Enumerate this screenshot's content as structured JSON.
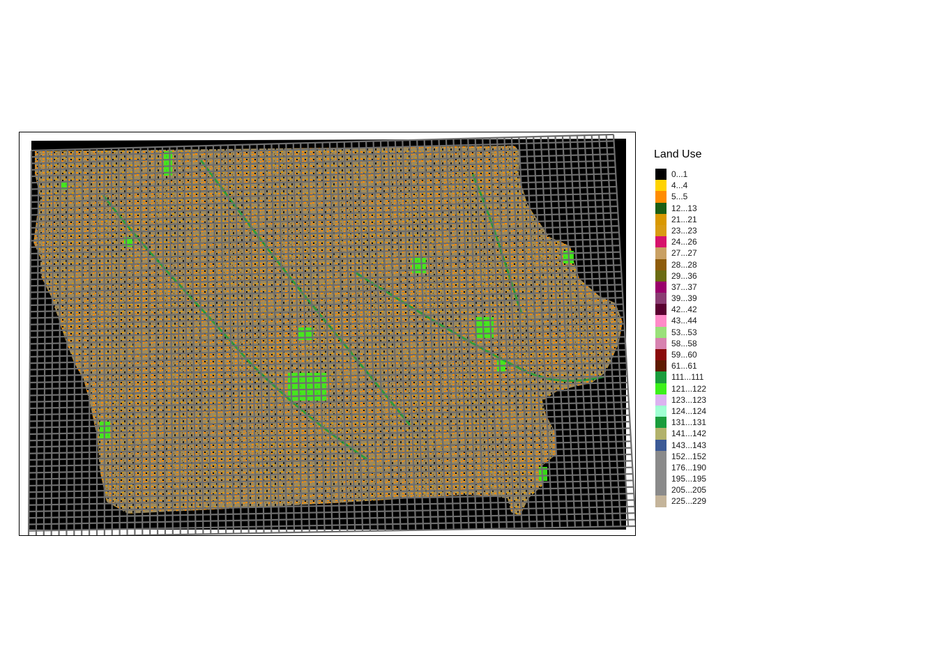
{
  "map": {
    "background_color": "#000000",
    "grid_color": "#6e6e6e",
    "region_base_color": "#9c8a5e"
  },
  "legend": {
    "title": "Land Use",
    "items": [
      {
        "label": "0...1",
        "color": "#000000"
      },
      {
        "label": "4...4",
        "color": "#ffd300"
      },
      {
        "label": "5...5",
        "color": "#ff8c00"
      },
      {
        "label": "12...13",
        "color": "#1c5e14"
      },
      {
        "label": "21...21",
        "color": "#d99800"
      },
      {
        "label": "23...23",
        "color": "#d99b12"
      },
      {
        "label": "24...26",
        "color": "#d6126c"
      },
      {
        "label": "27...27",
        "color": "#c9a063"
      },
      {
        "label": "28...28",
        "color": "#8e5c0a"
      },
      {
        "label": "29...36",
        "color": "#6b6b12"
      },
      {
        "label": "37...37",
        "color": "#9a006b"
      },
      {
        "label": "39...39",
        "color": "#8a3c72"
      },
      {
        "label": "42...42",
        "color": "#5a0030"
      },
      {
        "label": "43...44",
        "color": "#ff8ac8"
      },
      {
        "label": "53...53",
        "color": "#9ae07a"
      },
      {
        "label": "58...58",
        "color": "#d782b0"
      },
      {
        "label": "59...60",
        "color": "#8a0a0a"
      },
      {
        "label": "61...61",
        "color": "#5e1a00"
      },
      {
        "label": "111...111",
        "color": "#1a9c3c"
      },
      {
        "label": "121...122",
        "color": "#3cf01a"
      },
      {
        "label": "123...123",
        "color": "#dcb2f0"
      },
      {
        "label": "124...124",
        "color": "#a0ffd2"
      },
      {
        "label": "131...131",
        "color": "#1a9c3c"
      },
      {
        "label": "141...142",
        "color": "#b2b26b"
      },
      {
        "label": "143...143",
        "color": "#3c5a96"
      },
      {
        "label": "152...152",
        "color": "#8a8a8a"
      },
      {
        "label": "176...190",
        "color": "#8a8a8a"
      },
      {
        "label": "195...195",
        "color": "#8a8a8a"
      },
      {
        "label": "205...205",
        "color": "#8a8a8a"
      },
      {
        "label": "225...229",
        "color": "#c4b49a"
      }
    ]
  }
}
